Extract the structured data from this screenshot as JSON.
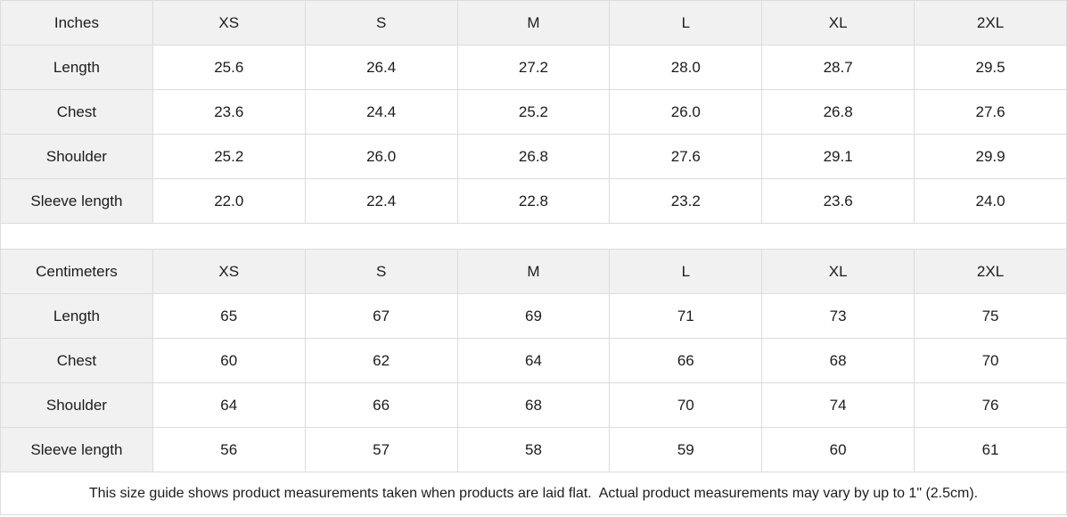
{
  "colors": {
    "header_background": "#f1f1f1",
    "border": "#dcdcdc",
    "text": "#1c1c1c",
    "page_background": "#ffffff"
  },
  "size_guide": {
    "tables": [
      {
        "unit_label": "Inches",
        "sizes": [
          "XS",
          "S",
          "M",
          "L",
          "XL",
          "2XL"
        ],
        "rows": [
          {
            "label": "Length",
            "values": [
              "25.6",
              "26.4",
              "27.2",
              "28.0",
              "28.7",
              "29.5"
            ]
          },
          {
            "label": "Chest",
            "values": [
              "23.6",
              "24.4",
              "25.2",
              "26.0",
              "26.8",
              "27.6"
            ]
          },
          {
            "label": "Shoulder",
            "values": [
              "25.2",
              "26.0",
              "26.8",
              "27.6",
              "29.1",
              "29.9"
            ]
          },
          {
            "label": "Sleeve length",
            "values": [
              "22.0",
              "22.4",
              "22.8",
              "23.2",
              "23.6",
              "24.0"
            ]
          }
        ]
      },
      {
        "unit_label": "Centimeters",
        "sizes": [
          "XS",
          "S",
          "M",
          "L",
          "XL",
          "2XL"
        ],
        "rows": [
          {
            "label": "Length",
            "values": [
              "65",
              "67",
              "69",
              "71",
              "73",
              "75"
            ]
          },
          {
            "label": "Chest",
            "values": [
              "60",
              "62",
              "64",
              "66",
              "68",
              "70"
            ]
          },
          {
            "label": "Shoulder",
            "values": [
              "64",
              "66",
              "68",
              "70",
              "74",
              "76"
            ]
          },
          {
            "label": "Sleeve length",
            "values": [
              "56",
              "57",
              "58",
              "59",
              "60",
              "61"
            ]
          }
        ]
      }
    ],
    "footnote": "This size guide shows product measurements taken when products are laid flat.  Actual product measurements may vary by up to 1\" (2.5cm)."
  }
}
